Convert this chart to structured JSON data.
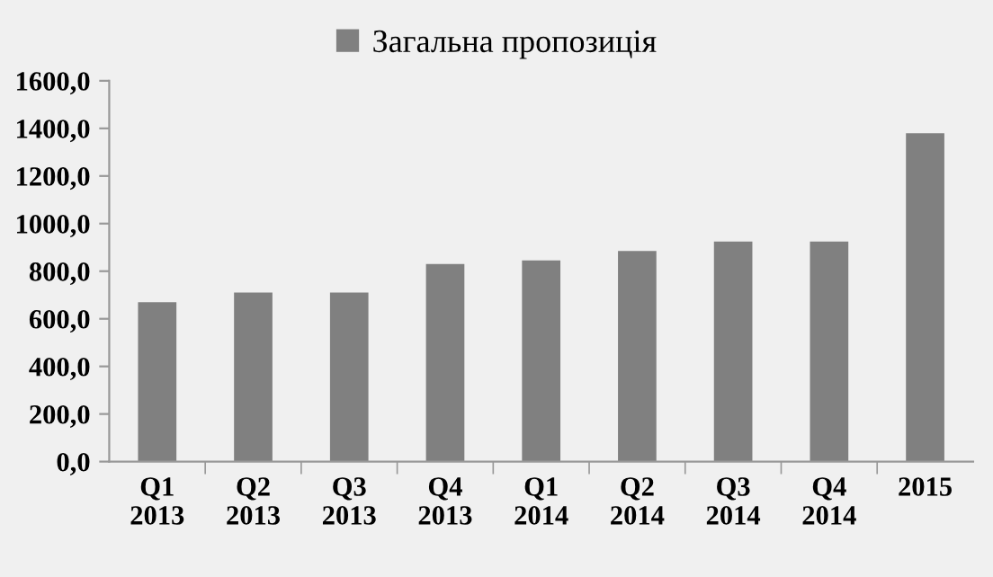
{
  "chart_data": {
    "type": "bar",
    "categories": [
      "Q1\n2013",
      "Q2\n2013",
      "Q3\n2013",
      "Q4\n2013",
      "Q1\n2014",
      "Q2\n2014",
      "Q3\n2014",
      "Q4\n2014",
      "2015"
    ],
    "series": [
      {
        "name": "Загальна пропозиція",
        "color": "#808080",
        "values": [
          670,
          710,
          710,
          830,
          845,
          885,
          925,
          925,
          1380
        ]
      }
    ],
    "ylim": [
      0,
      1600
    ],
    "yticks": [
      {
        "value": 0,
        "label": "0,0"
      },
      {
        "value": 200,
        "label": "200,0"
      },
      {
        "value": 400,
        "label": "400,0"
      },
      {
        "value": 600,
        "label": "600,0"
      },
      {
        "value": 800,
        "label": "800,0"
      },
      {
        "value": 1000,
        "label": "1000,0"
      },
      {
        "value": 1200,
        "label": "1200,0"
      },
      {
        "value": 1400,
        "label": "1400,0"
      },
      {
        "value": 1600,
        "label": "1600,0"
      }
    ],
    "grid": false,
    "legend": "top"
  }
}
